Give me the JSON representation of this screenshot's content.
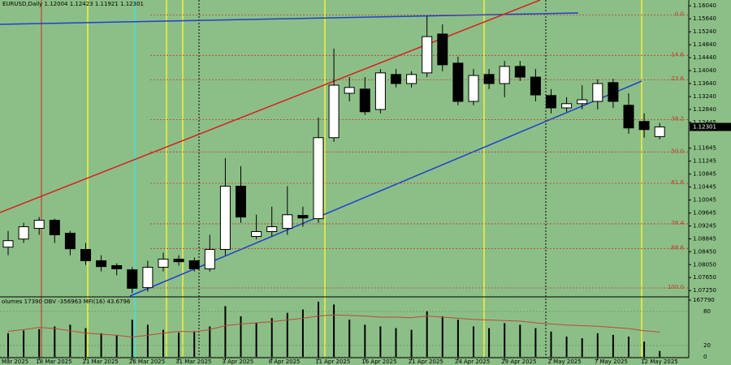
{
  "chart_data": [
    {
      "type": "candlestick",
      "title": "EURUSD,Daily 1.12004 1.12423 1.11921 1.12301",
      "categories": [
        "Mar 2025",
        null,
        "18 Mar 2025",
        null,
        null,
        "21 Mar 2025",
        null,
        null,
        "26 Mar 2025",
        null,
        null,
        "31 Mar 2025",
        null,
        null,
        "3 Apr 2025",
        null,
        null,
        "8 Apr 2025",
        null,
        null,
        "11 Apr 2025",
        null,
        null,
        "16 Apr 2025",
        null,
        null,
        "21 Apr 2025",
        null,
        null,
        "24 Apr 2025",
        null,
        null,
        "29 Apr 2025",
        null,
        null,
        "2 May 2025",
        null,
        null,
        "7 May 2025",
        null,
        null,
        "12 May 2025",
        null
      ],
      "open": [
        1.0859,
        1.0884,
        1.0917,
        1.0942,
        1.0902,
        1.0852,
        1.0817,
        1.0802,
        1.0789,
        1.0734,
        1.0797,
        1.0822,
        1.0817,
        1.0792,
        1.0852,
        1.1047,
        1.0892,
        1.0907,
        1.0917,
        1.0957,
        1.0947,
        1.1197,
        1.1334,
        1.1347,
        1.1284,
        1.1392,
        1.1364,
        1.1397,
        1.1517,
        1.1427,
        1.1309,
        1.1392,
        1.1364,
        1.1417,
        1.1384,
        1.1327,
        1.1289,
        1.1302,
        1.1309,
        1.1367,
        1.1297,
        1.1247,
        1.12004
      ],
      "high": [
        1.0909,
        1.0934,
        1.0952,
        1.0947,
        1.0909,
        1.0872,
        1.0834,
        1.0809,
        1.0797,
        1.0817,
        1.0842,
        1.0834,
        1.0827,
        1.0897,
        1.1134,
        1.1109,
        1.0959,
        1.0984,
        1.1047,
        1.0984,
        1.1259,
        1.1472,
        1.1384,
        1.1384,
        1.1409,
        1.1409,
        1.1402,
        1.1572,
        1.1547,
        1.1447,
        1.1409,
        1.1409,
        1.1434,
        1.1434,
        1.1409,
        1.1347,
        1.1322,
        1.1359,
        1.1377,
        1.1379,
        1.1334,
        1.1272,
        1.12423
      ],
      "low": [
        1.0834,
        1.0872,
        1.0897,
        1.0872,
        1.0834,
        1.0804,
        1.0784,
        1.0772,
        1.0717,
        1.0722,
        1.0784,
        1.0802,
        1.0784,
        1.0784,
        1.0834,
        1.0934,
        1.0884,
        1.0892,
        1.0897,
        1.0922,
        1.0934,
        1.1184,
        1.1309,
        1.1267,
        1.1272,
        1.1352,
        1.1352,
        1.1384,
        1.1402,
        1.1297,
        1.1297,
        1.1347,
        1.1322,
        1.1372,
        1.1309,
        1.1272,
        1.1277,
        1.1284,
        1.1284,
        1.1289,
        1.1209,
        1.1197,
        1.11921
      ],
      "close": [
        1.0879,
        1.0922,
        1.0942,
        1.0897,
        1.0854,
        1.0817,
        1.0799,
        1.0792,
        1.0732,
        1.0797,
        1.0822,
        1.0814,
        1.0792,
        1.0852,
        1.1047,
        1.0952,
        1.0907,
        1.0922,
        1.0959,
        1.0949,
        1.1197,
        1.1359,
        1.1352,
        1.1277,
        1.1397,
        1.1364,
        1.1392,
        1.1509,
        1.1422,
        1.1309,
        1.1389,
        1.1364,
        1.1417,
        1.1384,
        1.1329,
        1.1289,
        1.1302,
        1.1314,
        1.1364,
        1.1309,
        1.1227,
        1.1222,
        1.12301
      ],
      "up_color": "#ffffff",
      "down_color": "#000000",
      "ylim": [
        1.0708,
        1.1622
      ],
      "yticks": [
        {
          "value": 1.1604,
          "label": "1.16040"
        },
        {
          "value": 1.1564,
          "label": "1.15640"
        },
        {
          "value": 1.1524,
          "label": "1.15240"
        },
        {
          "value": 1.1484,
          "label": "1.14840"
        },
        {
          "value": 1.1444,
          "label": "1.14440"
        },
        {
          "value": 1.1404,
          "label": "1.14040"
        },
        {
          "value": 1.1364,
          "label": "1.13640"
        },
        {
          "value": 1.1324,
          "label": "1.13240"
        },
        {
          "value": 1.1284,
          "label": "1.12840"
        },
        {
          "value": 1.12445,
          "label": "1.12445"
        },
        {
          "value": 1.11645,
          "label": "1.11645"
        },
        {
          "value": 1.11245,
          "label": "1.11245"
        },
        {
          "value": 1.10845,
          "label": "1.10845"
        },
        {
          "value": 1.10445,
          "label": "1.10445"
        },
        {
          "value": 1.10045,
          "label": "1.10045"
        },
        {
          "value": 1.09645,
          "label": "1.09645"
        },
        {
          "value": 1.09245,
          "label": "1.09245"
        },
        {
          "value": 1.08845,
          "label": "1.08845"
        },
        {
          "value": 1.0845,
          "label": "1.08450"
        },
        {
          "value": 1.0805,
          "label": "1.08050"
        },
        {
          "value": 1.0765,
          "label": "1.07650"
        },
        {
          "value": 1.0725,
          "label": "1.07250"
        }
      ],
      "fib_levels": [
        {
          "value": 1.1576,
          "label": "0.0"
        },
        {
          "value": 1.1451,
          "label": "14.6"
        },
        {
          "value": 1.1376,
          "label": "23.6"
        },
        {
          "value": 1.1253,
          "label": "38.2"
        },
        {
          "value": 1.1153,
          "label": "50.0"
        },
        {
          "value": 1.1056,
          "label": "61.8"
        },
        {
          "value": 1.0931,
          "label": "76.4"
        },
        {
          "value": 1.0855,
          "label": "88.6"
        },
        {
          "value": 1.0733,
          "label": "100.0"
        }
      ],
      "fib_color": "#c0392b"
    },
    {
      "type": "bar",
      "title": "olumes 17390  OBV -356963 MFI(16) 43.6796",
      "values": [
        70000,
        78000,
        82000,
        90000,
        95000,
        85000,
        70000,
        65000,
        110000,
        95000,
        80000,
        72000,
        76000,
        90000,
        150000,
        120000,
        100000,
        115000,
        130000,
        140000,
        163000,
        155000,
        110000,
        95000,
        90000,
        85000,
        80000,
        135000,
        120000,
        110000,
        90000,
        85000,
        100000,
        95000,
        85000,
        75000,
        60000,
        55000,
        70000,
        65000,
        60000,
        45000,
        17390
      ],
      "color": "#000000",
      "ylim": [
        0,
        167790
      ],
      "yticks": [
        167790
      ],
      "mfi": {
        "color": "#b84a3a",
        "axis": "y2",
        "values": [
          45,
          48,
          52,
          50,
          46,
          42,
          40,
          38,
          35,
          38,
          42,
          45,
          44,
          48,
          55,
          58,
          60,
          62,
          65,
          68,
          72,
          74,
          73,
          72,
          70,
          70,
          69,
          72,
          70,
          68,
          66,
          65,
          64,
          63,
          60,
          58,
          56,
          55,
          54,
          52,
          50,
          46,
          43.6796
        ]
      },
      "y2lim": [
        0,
        100
      ],
      "y2ticks": [
        0,
        20,
        80
      ]
    }
  ]
}
